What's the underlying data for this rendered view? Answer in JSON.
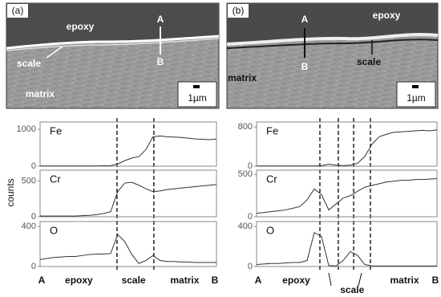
{
  "figure": {
    "y_label": "counts",
    "panels": [
      {
        "label": "(a)",
        "image_labels": [
          "epoxy",
          "A",
          "B",
          "scale",
          "matrix"
        ],
        "scale_bar": "1µm",
        "axis_labels": [
          "A",
          "epoxy",
          "scale",
          "matrix",
          "B"
        ],
        "boundaries": [
          43.6,
          64.5
        ]
      },
      {
        "label": "(b)",
        "image_labels": [
          "epoxy",
          "A",
          "B",
          "scale",
          "matrix"
        ],
        "scale_bar": "1µm",
        "axis_labels": [
          "A",
          "epoxy",
          "scale",
          "matrix",
          "B"
        ],
        "boundaries": [
          35.1,
          45.3,
          53.8,
          63.1
        ]
      }
    ]
  },
  "chart_data": [
    {
      "type": "line",
      "title": "Fe",
      "color": "#333333",
      "xlim": [
        0,
        100
      ],
      "ylim": [
        0,
        1200
      ],
      "yticks": [
        0,
        1000
      ],
      "x": [
        0,
        4,
        8,
        12,
        16,
        20,
        24,
        28,
        32,
        36,
        40,
        44,
        48,
        52,
        56,
        60,
        64,
        68,
        72,
        76,
        80,
        84,
        88,
        92,
        96,
        100
      ],
      "values": [
        5,
        5,
        5,
        5,
        5,
        5,
        5,
        5,
        5,
        10,
        15,
        60,
        150,
        220,
        260,
        450,
        800,
        820,
        800,
        790,
        780,
        760,
        740,
        730,
        720,
        740
      ]
    },
    {
      "type": "line",
      "title": "Cr",
      "color": "#333333",
      "xlim": [
        0,
        100
      ],
      "ylim": [
        0,
        650
      ],
      "yticks": [
        0,
        500
      ],
      "x": [
        0,
        4,
        8,
        12,
        16,
        20,
        24,
        28,
        32,
        36,
        40,
        44,
        48,
        52,
        56,
        60,
        64,
        68,
        72,
        76,
        80,
        84,
        88,
        92,
        96,
        100
      ],
      "values": [
        10,
        10,
        10,
        10,
        10,
        10,
        15,
        20,
        30,
        45,
        70,
        350,
        470,
        480,
        440,
        390,
        350,
        360,
        380,
        390,
        400,
        410,
        420,
        430,
        440,
        450
      ]
    },
    {
      "type": "line",
      "title": "O",
      "color": "#333333",
      "xlim": [
        0,
        100
      ],
      "ylim": [
        0,
        450
      ],
      "yticks": [
        0,
        400
      ],
      "x": [
        0,
        4,
        8,
        12,
        16,
        20,
        24,
        28,
        32,
        36,
        40,
        44,
        48,
        52,
        56,
        60,
        64,
        68,
        72,
        76,
        80,
        84,
        88,
        92,
        96,
        100
      ],
      "values": [
        70,
        80,
        90,
        95,
        100,
        100,
        110,
        120,
        125,
        125,
        130,
        320,
        250,
        120,
        30,
        60,
        110,
        60,
        50,
        50,
        45,
        45,
        40,
        40,
        40,
        40
      ]
    },
    {
      "type": "line",
      "title": "Fe",
      "color": "#333333",
      "xlim": [
        0,
        100
      ],
      "ylim": [
        0,
        900
      ],
      "yticks": [
        0,
        800
      ],
      "x": [
        0,
        4,
        8,
        12,
        16,
        20,
        24,
        28,
        32,
        36,
        40,
        44,
        48,
        52,
        56,
        60,
        64,
        68,
        72,
        76,
        80,
        84,
        88,
        92,
        96,
        100
      ],
      "values": [
        5,
        5,
        5,
        5,
        5,
        5,
        5,
        5,
        5,
        10,
        40,
        20,
        10,
        20,
        60,
        200,
        450,
        600,
        650,
        690,
        700,
        710,
        720,
        730,
        720,
        740
      ]
    },
    {
      "type": "line",
      "title": "Cr",
      "color": "#333333",
      "xlim": [
        0,
        100
      ],
      "ylim": [
        0,
        550
      ],
      "yticks": [
        0,
        500
      ],
      "x": [
        0,
        4,
        8,
        12,
        16,
        20,
        24,
        28,
        32,
        36,
        40,
        44,
        48,
        52,
        56,
        60,
        64,
        68,
        72,
        76,
        80,
        84,
        88,
        92,
        96,
        100
      ],
      "values": [
        40,
        50,
        60,
        70,
        80,
        100,
        120,
        200,
        330,
        260,
        80,
        150,
        220,
        250,
        300,
        350,
        370,
        390,
        410,
        420,
        430,
        430,
        440,
        440,
        445,
        450
      ]
    },
    {
      "type": "line",
      "title": "O",
      "color": "#333333",
      "xlim": [
        0,
        100
      ],
      "ylim": [
        0,
        450
      ],
      "yticks": [
        0,
        400
      ],
      "x": [
        0,
        4,
        8,
        12,
        16,
        20,
        24,
        28,
        32,
        36,
        40,
        44,
        48,
        52,
        56,
        60,
        64,
        68,
        72,
        76,
        80,
        84,
        88,
        92,
        96,
        100
      ],
      "values": [
        20,
        25,
        30,
        30,
        35,
        40,
        40,
        60,
        340,
        300,
        10,
        5,
        60,
        150,
        110,
        20,
        5,
        5,
        5,
        5,
        5,
        5,
        5,
        5,
        5,
        5
      ]
    }
  ]
}
